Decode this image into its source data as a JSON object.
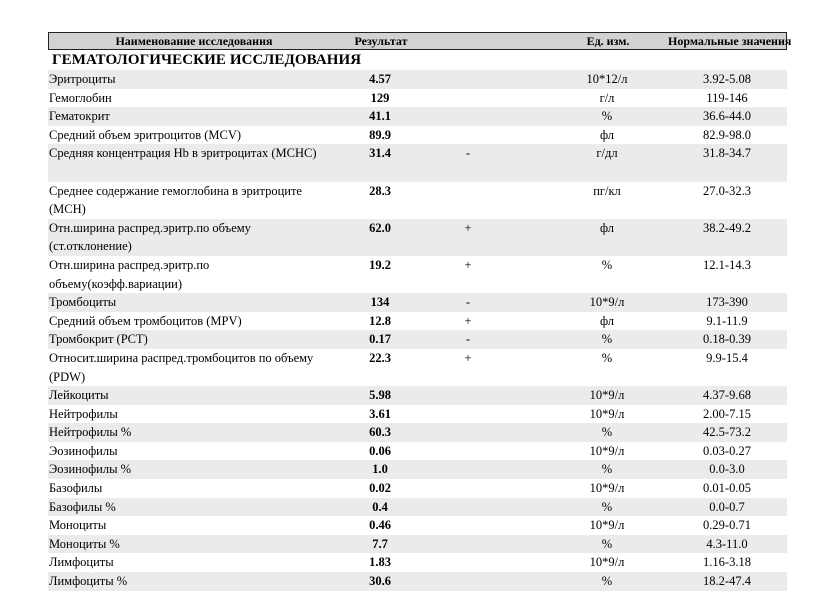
{
  "header": {
    "name": "Наименование исследования",
    "result": "Результат",
    "unit": "Ед. изм.",
    "norm": "Нормальные значения"
  },
  "section_title": "ГЕМАТОЛОГИЧЕСКИЕ ИССЛЕДОВАНИЯ",
  "rows": [
    {
      "name": "Эритроциты",
      "result": "4.57",
      "flag": "",
      "unit": "10*12/л",
      "norm": "3.92-5.08"
    },
    {
      "name": "Гемоглобин",
      "result": "129",
      "flag": "",
      "unit": "г/л",
      "norm": "119-146"
    },
    {
      "name": "Гематокрит",
      "result": "41.1",
      "flag": "",
      "unit": "%",
      "norm": "36.6-44.0"
    },
    {
      "name": "Средний объем эритроцитов (MCV)",
      "result": "89.9",
      "flag": "",
      "unit": "фл",
      "norm": "82.9-98.0"
    },
    {
      "name": "Средняя концентрация Hb в эритроцитах (MCHC)",
      "result": "31.4",
      "flag": "-",
      "unit": "г/дл",
      "norm": "31.8-34.7"
    },
    {
      "name": "Среднее содержание гемоглобина в эритроците (MCH)",
      "result": "28.3",
      "flag": "",
      "unit": "пг/кл",
      "norm": "27.0-32.3"
    },
    {
      "name": "Отн.ширина распред.эритр.по объему (ст.отклонение)",
      "result": "62.0",
      "flag": "+",
      "unit": "фл",
      "norm": "38.2-49.2"
    },
    {
      "name": "Отн.ширина распред.эритр.по объему(коэфф.вариации)",
      "result": "19.2",
      "flag": "+",
      "unit": "%",
      "norm": "12.1-14.3"
    },
    {
      "name": "Тромбоциты",
      "result": "134",
      "flag": "-",
      "unit": "10*9/л",
      "norm": "173-390"
    },
    {
      "name": "Средний объем тромбоцитов (MPV)",
      "result": "12.8",
      "flag": "+",
      "unit": "фл",
      "norm": "9.1-11.9"
    },
    {
      "name": "Тромбокрит (PCT)",
      "result": "0.17",
      "flag": "-",
      "unit": "%",
      "norm": "0.18-0.39"
    },
    {
      "name": "Относит.ширина распред.тромбоцитов по объему (PDW)",
      "result": "22.3",
      "flag": "+",
      "unit": "%",
      "norm": "9.9-15.4"
    },
    {
      "name": "Лейкоциты",
      "result": "5.98",
      "flag": "",
      "unit": "10*9/л",
      "norm": "4.37-9.68"
    },
    {
      "name": "Нейтрофилы",
      "result": "3.61",
      "flag": "",
      "unit": "10*9/л",
      "norm": "2.00-7.15"
    },
    {
      "name": "Нейтрофилы %",
      "result": "60.3",
      "flag": "",
      "unit": "%",
      "norm": "42.5-73.2"
    },
    {
      "name": "Эозинофилы",
      "result": "0.06",
      "flag": "",
      "unit": "10*9/л",
      "norm": "0.03-0.27"
    },
    {
      "name": "Эозинофилы %",
      "result": "1.0",
      "flag": "",
      "unit": "%",
      "norm": "0.0-3.0"
    },
    {
      "name": "Базофилы",
      "result": "0.02",
      "flag": "",
      "unit": "10*9/л",
      "norm": "0.01-0.05"
    },
    {
      "name": "Базофилы %",
      "result": "0.4",
      "flag": "",
      "unit": "%",
      "norm": "0.0-0.7"
    },
    {
      "name": "Моноциты",
      "result": "0.46",
      "flag": "",
      "unit": "10*9/л",
      "norm": "0.29-0.71"
    },
    {
      "name": "Моноциты %",
      "result": "7.7",
      "flag": "",
      "unit": "%",
      "norm": "4.3-11.0"
    },
    {
      "name": "Лимфоциты",
      "result": "1.83",
      "flag": "",
      "unit": "10*9/л",
      "norm": "1.16-3.18"
    },
    {
      "name": "Лимфоциты %",
      "result": "30.6",
      "flag": "",
      "unit": "%",
      "norm": "18.2-47.4"
    }
  ]
}
